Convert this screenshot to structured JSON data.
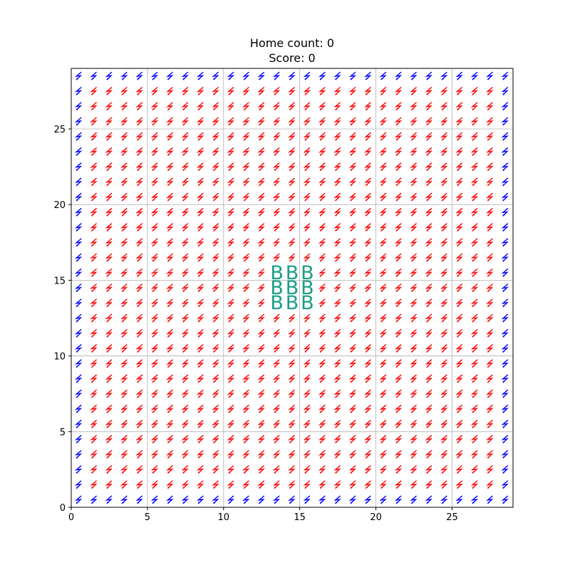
{
  "header": {
    "home_count_text": "Home count: 0",
    "score_text": "Score: 0"
  },
  "grid": {
    "cols": 29,
    "rows": 29,
    "xlim": [
      0,
      29
    ],
    "ylim": [
      0,
      29
    ],
    "x_ticks": [
      0,
      5,
      10,
      15,
      20,
      25
    ],
    "y_ticks": [
      0,
      5,
      10,
      15,
      20,
      25
    ],
    "grid_lines": true
  },
  "glyphs": {
    "symbol": "lightning-bolt-icon",
    "edge_color": "#0000ff",
    "inner_color": "#ff0000",
    "border_color": "#000000",
    "grid_color": "#b0b0b0"
  },
  "bases": {
    "label": "B",
    "color": "#1a9e88",
    "cells": [
      [
        13,
        13
      ],
      [
        14,
        13
      ],
      [
        15,
        13
      ],
      [
        13,
        14
      ],
      [
        14,
        14
      ],
      [
        15,
        14
      ],
      [
        13,
        15
      ],
      [
        14,
        15
      ],
      [
        15,
        15
      ]
    ]
  }
}
